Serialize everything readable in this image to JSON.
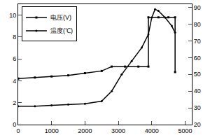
{
  "chart_data": {
    "type": "line",
    "series": [
      {
        "name": "电压(V)",
        "color": "#000000",
        "marker": "square",
        "x": [
          0,
          500,
          1000,
          1500,
          2000,
          2500,
          2800,
          3200,
          3600,
          3900,
          3900,
          4200,
          4500,
          4700,
          4700
        ],
        "values": [
          4.2,
          4.3,
          4.4,
          4.5,
          4.7,
          4.9,
          5.3,
          5.3,
          5.3,
          5.3,
          9.8,
          9.8,
          9.8,
          9.8,
          4.8
        ]
      },
      {
        "name": "温度(℃)",
        "color": "#000000",
        "marker": "circle",
        "axis": "y2",
        "x": [
          0,
          500,
          1000,
          1500,
          2000,
          2500,
          2800,
          3100,
          3400,
          3700,
          3900,
          4000,
          4100,
          4200,
          4400,
          4600,
          4700
        ],
        "values": [
          31,
          31,
          31.5,
          32,
          32.5,
          34,
          40,
          50,
          58,
          66,
          74,
          84,
          89,
          88,
          84,
          79,
          75
        ]
      }
    ],
    "xlim": [
      0,
      5200
    ],
    "xticks": [
      0,
      1000,
      2000,
      3000,
      4000,
      5000
    ],
    "ylim": [
      0,
      11
    ],
    "yticks": [
      0,
      2,
      4,
      6,
      8,
      10
    ],
    "y2lim": [
      20,
      92
    ],
    "y2ticks": [
      20,
      30,
      40,
      50,
      60,
      70,
      80,
      90
    ],
    "grid": false,
    "legend": "upper left"
  }
}
